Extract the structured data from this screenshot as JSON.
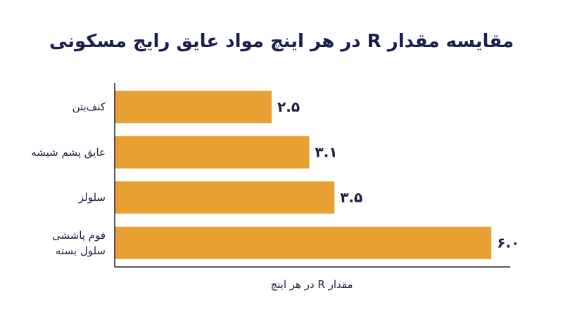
{
  "chart_data": {
    "type": "bar",
    "orientation": "horizontal",
    "title": "مقایسه مقدار R در هر اینچ مواد عایق رایج مسکونی",
    "x_label": "مقدار R در هر اینچ",
    "categories": [
      "کنف‌بتن",
      "عایق پشم شیشه",
      "سلولز",
      "فوم پاششی\nسلول بسته"
    ],
    "values": [
      2.5,
      3.1,
      3.5,
      6.0
    ],
    "value_labels": [
      "۲.۵",
      "۳.۱",
      "۳.۵",
      "۶.۰"
    ],
    "color": "#e8a033",
    "xlim": [
      0,
      6.3
    ]
  }
}
